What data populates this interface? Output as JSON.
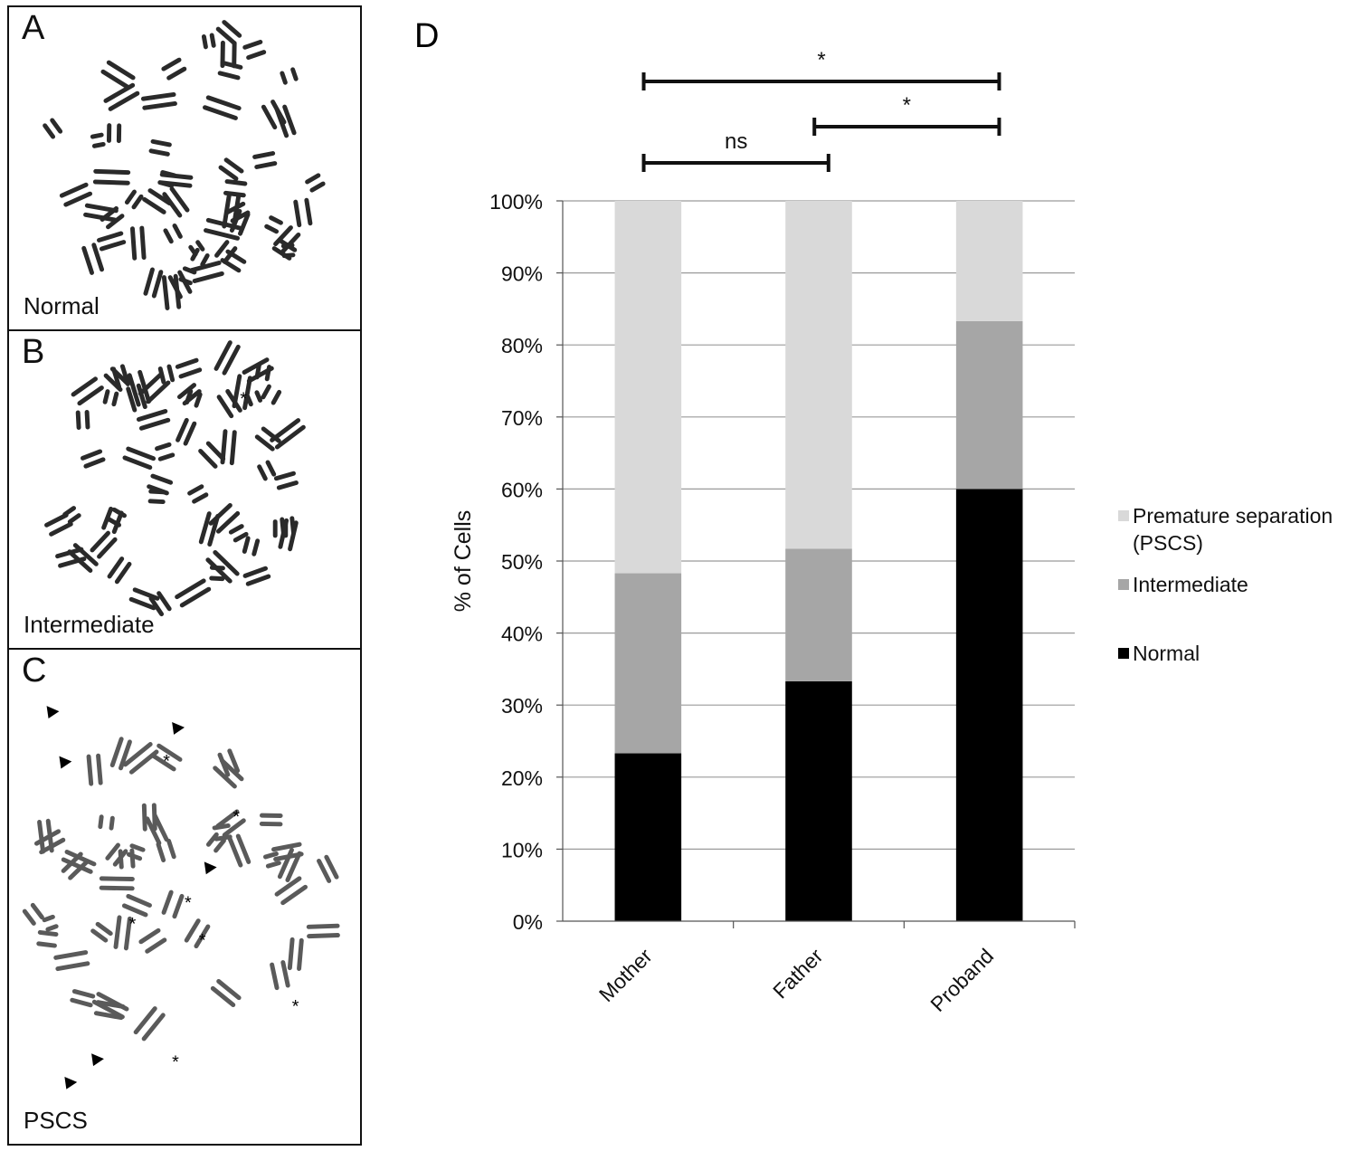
{
  "panels": [
    {
      "letter": "A",
      "label": "Normal"
    },
    {
      "letter": "B",
      "label": "Intermediate"
    },
    {
      "letter": "C",
      "label": "PSCS"
    }
  ],
  "chart_panel_letter": "D",
  "chart_data": {
    "type": "bar",
    "stacked": true,
    "categories": [
      "Mother",
      "Father",
      "Proband"
    ],
    "series": [
      {
        "name": "Normal",
        "color": "#000000",
        "values": [
          23.3,
          33.3,
          60.0
        ]
      },
      {
        "name": "Intermediate",
        "color": "#a6a6a6",
        "values": [
          25.0,
          18.4,
          23.3
        ]
      },
      {
        "name": "Premature separation (PSCS)",
        "color": "#d9d9d9",
        "values": [
          51.7,
          48.3,
          16.7
        ]
      }
    ],
    "ylabel": "% of Cells",
    "ylim": [
      0,
      100
    ],
    "yticks": [
      "0%",
      "10%",
      "20%",
      "30%",
      "40%",
      "50%",
      "60%",
      "70%",
      "80%",
      "90%",
      "100%"
    ],
    "grid": true,
    "legend_position": "right",
    "legend_entries": [
      "Premature separation",
      "(PSCS)",
      "Intermediate",
      "Normal"
    ],
    "significance": [
      {
        "from": "Mother",
        "to": "Father",
        "label": "ns"
      },
      {
        "from": "Father",
        "to": "Proband",
        "label": "*"
      },
      {
        "from": "Mother",
        "to": "Proband",
        "label": "*"
      }
    ]
  }
}
